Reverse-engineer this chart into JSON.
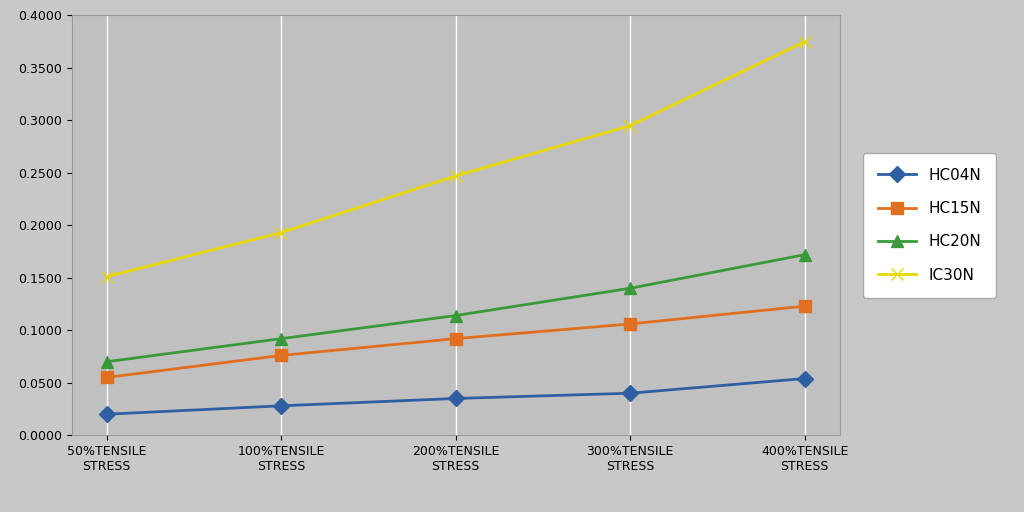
{
  "categories": [
    "50%TENSILE\nSTRESS",
    "100%TENSILE\nSTRESS",
    "200%TENSILE\nSTRESS",
    "300%TENSILE\nSTRESS",
    "400%TENSILE\nSTRESS"
  ],
  "series": [
    {
      "label": "HC04N",
      "color": "#2E5FA3",
      "marker": "D",
      "values": [
        0.02,
        0.028,
        0.035,
        0.04,
        0.054
      ]
    },
    {
      "label": "HC15N",
      "color": "#E07020",
      "marker": "s",
      "values": [
        0.055,
        0.076,
        0.092,
        0.106,
        0.123
      ]
    },
    {
      "label": "HC20N",
      "color": "#3A9A3A",
      "marker": "^",
      "values": [
        0.07,
        0.092,
        0.114,
        0.14,
        0.172
      ]
    },
    {
      "label": "IC30N",
      "color": "#E8D800",
      "marker": "x",
      "values": [
        0.151,
        0.193,
        0.247,
        0.295,
        0.375
      ]
    }
  ],
  "ylim": [
    0.0,
    0.4
  ],
  "yticks": [
    0.0,
    0.05,
    0.1,
    0.15,
    0.2,
    0.25,
    0.3,
    0.35,
    0.4
  ],
  "plot_bg_color": "#C0C0C0",
  "fig_bg_color": "#C8C8C8",
  "legend_bg_color": "#FFFFFF",
  "grid_color": "#FFFFFF",
  "legend_fontsize": 11,
  "tick_fontsize": 9,
  "line_width": 2.0,
  "marker_size": 8
}
